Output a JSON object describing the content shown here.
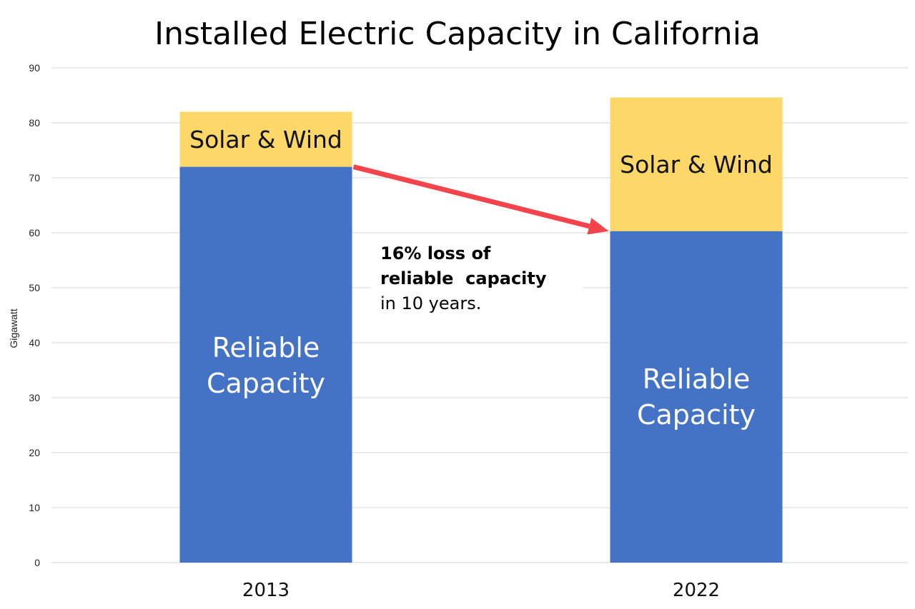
{
  "chart_data": {
    "type": "bar",
    "stacked": true,
    "title": "Installed Electric Capacity in California",
    "xlabel": "",
    "ylabel": "Gigawatt",
    "ylim": [
      0,
      90
    ],
    "yticks": [
      0,
      10,
      20,
      30,
      40,
      50,
      60,
      70,
      80,
      90
    ],
    "grid": true,
    "legend": "none",
    "categories": [
      "2013",
      "2022"
    ],
    "series": [
      {
        "name": "Reliable Capacity",
        "color": "#4472C4",
        "label_lines": [
          "Reliable",
          "Capacity"
        ],
        "values": [
          72,
          60.3
        ]
      },
      {
        "name": "Solar & Wind",
        "color": "#FDD868",
        "label_lines": [
          "Solar & Wind"
        ],
        "values": [
          10,
          24.3
        ]
      }
    ],
    "annotation": {
      "arrow_color": "#F2444A",
      "arrow_from": {
        "category": "2013",
        "value": 72
      },
      "arrow_to": {
        "category": "2022",
        "value": 60.3
      },
      "lines": [
        {
          "text": "16% loss of",
          "bold": true
        },
        {
          "text": "reliable  capacity",
          "bold": true
        },
        {
          "text": "in 10 years.",
          "bold": false
        }
      ]
    }
  }
}
